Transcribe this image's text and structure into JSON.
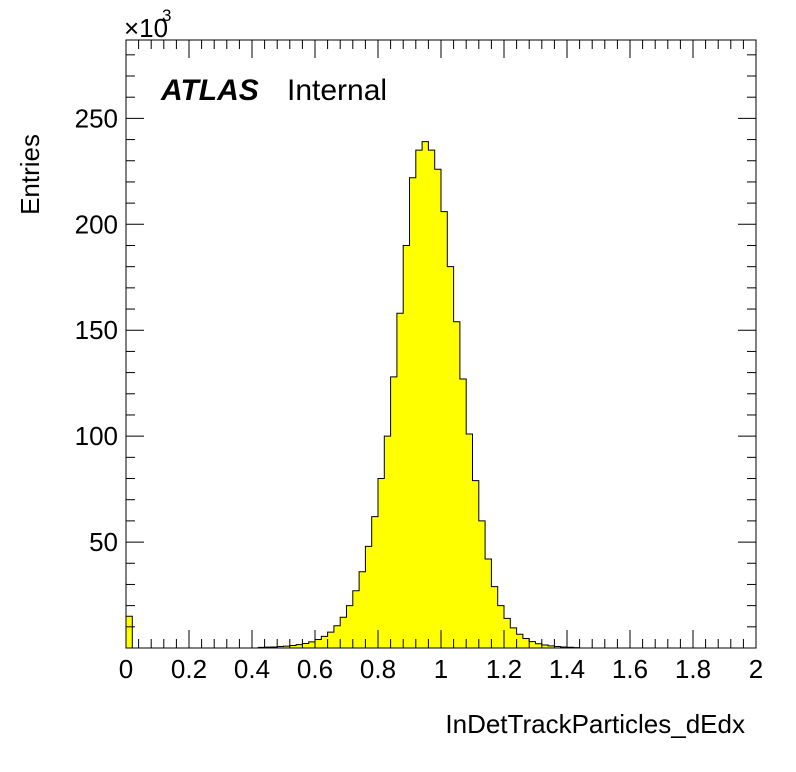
{
  "chart_data": {
    "type": "bar",
    "histogram": true,
    "xlabel": "InDetTrackParticles_dEdx",
    "ylabel": "Entries",
    "y_multiplier": "×10",
    "y_multiplier_exp": "3",
    "label_bold": "ATLAS",
    "label_plain": "Internal",
    "fill_color": "#ffff00",
    "line_color": "#000000",
    "xlim": [
      0,
      2
    ],
    "ylim": [
      0,
      287
    ],
    "x_ticks": [
      "0",
      "0.2",
      "0.4",
      "0.6",
      "0.8",
      "1",
      "1.2",
      "1.4",
      "1.6",
      "1.8",
      "2"
    ],
    "y_ticks": [
      "50",
      "100",
      "150",
      "200",
      "250"
    ],
    "bin_width": 0.02,
    "bin_edges_start": 0,
    "values": [
      15,
      0,
      0,
      0,
      0,
      0,
      0,
      0,
      0,
      0,
      0,
      0,
      0,
      0,
      0,
      0,
      0,
      0,
      0,
      0,
      0,
      0.3,
      0.4,
      0.5,
      0.7,
      0.9,
      1.2,
      1.6,
      2.1,
      2.9,
      4,
      5.5,
      7.5,
      10.5,
      14.5,
      20,
      27,
      36,
      48,
      62,
      80,
      100,
      128,
      158,
      190,
      222,
      235,
      239,
      235,
      226,
      206,
      180,
      154,
      127,
      101,
      79,
      60,
      42,
      29,
      20,
      14,
      9.5,
      6.5,
      4.5,
      3,
      2,
      1.4,
      1,
      0.7,
      0.5,
      0.35,
      0.2,
      0,
      0,
      0,
      0,
      0,
      0,
      0,
      0,
      0,
      0,
      0,
      0,
      0,
      0,
      0,
      0,
      0,
      0,
      0,
      0,
      0,
      0,
      0,
      0,
      0,
      0,
      0,
      0
    ]
  }
}
